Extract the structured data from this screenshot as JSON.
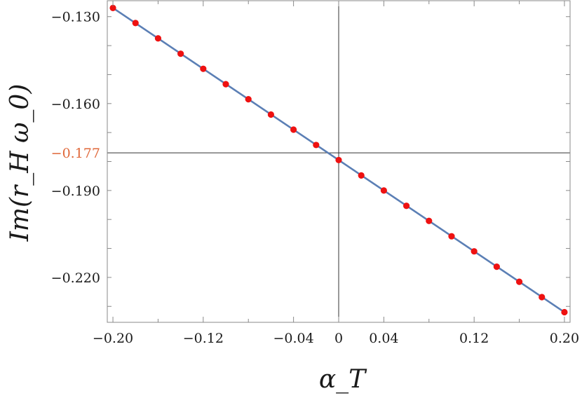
{
  "chart_data": {
    "type": "line",
    "xlabel": "α_T",
    "ylabel": "Im(r_H ω_0)",
    "xlim": [
      -0.205,
      0.205
    ],
    "ylim": [
      -0.2355,
      -0.1245
    ],
    "x_ticks": [
      {
        "value": -0.2,
        "label": "−0.20"
      },
      {
        "value": -0.12,
        "label": "−0.12"
      },
      {
        "value": -0.04,
        "label": "−0.04"
      },
      {
        "value": 0.0,
        "label": "0"
      },
      {
        "value": 0.04,
        "label": "0.04"
      },
      {
        "value": 0.12,
        "label": "0.12"
      },
      {
        "value": 0.2,
        "label": "0.20"
      }
    ],
    "y_ticks": [
      {
        "value": -0.13,
        "label": "−0.130",
        "highlight": false
      },
      {
        "value": -0.16,
        "label": "−0.160",
        "highlight": false
      },
      {
        "value": -0.177,
        "label": "−0.177",
        "highlight": true
      },
      {
        "value": -0.19,
        "label": "−0.190",
        "highlight": false
      },
      {
        "value": -0.22,
        "label": "−0.220",
        "highlight": false
      }
    ],
    "reference_lines": {
      "x": 0.0,
      "y": -0.177
    },
    "series": [
      {
        "kind": "line",
        "x": [
          -0.2,
          0.2
        ],
        "y": [
          -0.127,
          -0.232
        ]
      },
      {
        "kind": "points",
        "x": [
          -0.2,
          -0.18,
          -0.16,
          -0.14,
          -0.12,
          -0.1,
          -0.08,
          -0.06,
          -0.04,
          -0.02,
          0.0,
          0.02,
          0.04,
          0.06,
          0.08,
          0.1,
          0.12,
          0.14,
          0.16,
          0.18,
          0.2
        ],
        "y": [
          -0.127,
          -0.1322,
          -0.1375,
          -0.1428,
          -0.148,
          -0.1533,
          -0.1585,
          -0.1638,
          -0.169,
          -0.1743,
          -0.1795,
          -0.1848,
          -0.19,
          -0.1953,
          -0.2005,
          -0.2058,
          -0.211,
          -0.2163,
          -0.2215,
          -0.2268,
          -0.232
        ]
      }
    ],
    "colors": {
      "line": "#5b7fb5",
      "points": "#ee1111",
      "highlight_tick": "#e0683a",
      "frame": "#8a8a8a",
      "reference": "#333333"
    },
    "grid": false,
    "legend": false
  }
}
